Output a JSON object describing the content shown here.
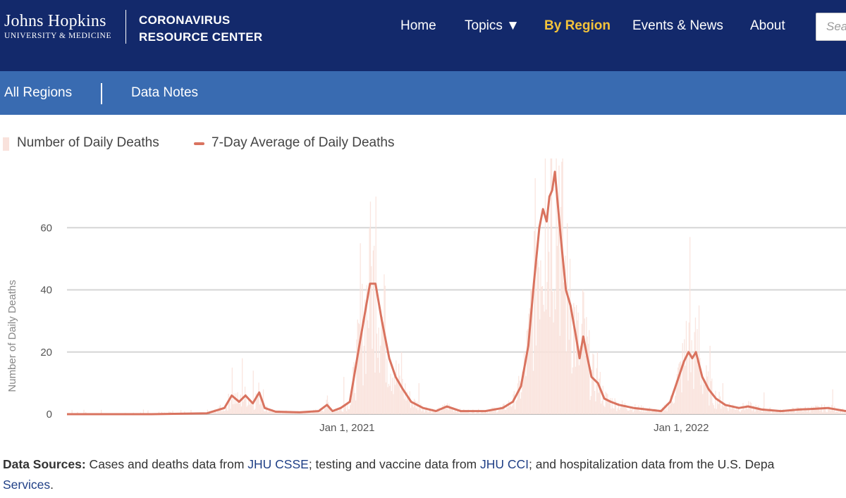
{
  "header": {
    "logo_line1": "Johns Hopkins",
    "logo_line2": "UNIVERSITY & MEDICINE",
    "center_line1": "CORONAVIRUS",
    "center_line2": "RESOURCE CENTER",
    "nav": [
      {
        "label": "Home",
        "active": false
      },
      {
        "label": "Topics ▼",
        "active": false
      },
      {
        "label": "By Region",
        "active": true
      },
      {
        "label": "Events & News",
        "active": false
      },
      {
        "label": "About",
        "active": false
      }
    ],
    "search_placeholder": "Sea"
  },
  "subnav": {
    "items": [
      "All Regions",
      "Data Notes"
    ]
  },
  "legend": {
    "bars_label": "Number of Daily Deaths",
    "line_label": "7-Day Average of Daily Deaths"
  },
  "colors": {
    "header_bg": "#13296b",
    "subnav_bg": "#396bb1",
    "active_nav": "#f3c33b",
    "bar_color": "#f9e2dc",
    "line_color": "#d9735f"
  },
  "chart_data": {
    "type": "bar",
    "ylabel": "Number of Daily Deaths",
    "ylim": [
      0,
      80
    ],
    "yticks": [
      0,
      20,
      40,
      60
    ],
    "xlim": [
      "2020-03-01",
      "2022-06-30"
    ],
    "xticks": [
      {
        "date": "2021-01-01",
        "label": "Jan 1, 2021"
      },
      {
        "date": "2022-01-01",
        "label": "Jan 1, 2022"
      }
    ],
    "grid": true,
    "legend_position": "top-left",
    "series": [
      {
        "name": "7-Day Average of Daily Deaths",
        "kind": "line",
        "points": [
          [
            "2020-03-01",
            0
          ],
          [
            "2020-06-01",
            0
          ],
          [
            "2020-08-01",
            0.3
          ],
          [
            "2020-08-20",
            2
          ],
          [
            "2020-08-28",
            6
          ],
          [
            "2020-09-05",
            4
          ],
          [
            "2020-09-12",
            6
          ],
          [
            "2020-09-20",
            3.5
          ],
          [
            "2020-09-27",
            7
          ],
          [
            "2020-10-03",
            2
          ],
          [
            "2020-10-15",
            0.8
          ],
          [
            "2020-11-10",
            0.6
          ],
          [
            "2020-12-01",
            1
          ],
          [
            "2020-12-10",
            3
          ],
          [
            "2020-12-16",
            1
          ],
          [
            "2020-12-25",
            2
          ],
          [
            "2021-01-04",
            4
          ],
          [
            "2021-01-12",
            18
          ],
          [
            "2021-01-19",
            30
          ],
          [
            "2021-01-26",
            42
          ],
          [
            "2021-02-01",
            42
          ],
          [
            "2021-02-08",
            30
          ],
          [
            "2021-02-16",
            18
          ],
          [
            "2021-02-23",
            12
          ],
          [
            "2021-03-03",
            8
          ],
          [
            "2021-03-12",
            4
          ],
          [
            "2021-03-25",
            2
          ],
          [
            "2021-04-08",
            1
          ],
          [
            "2021-04-20",
            2.5
          ],
          [
            "2021-05-05",
            1
          ],
          [
            "2021-06-01",
            1
          ],
          [
            "2021-06-20",
            2
          ],
          [
            "2021-07-01",
            4
          ],
          [
            "2021-07-10",
            9
          ],
          [
            "2021-07-18",
            22
          ],
          [
            "2021-07-24",
            42
          ],
          [
            "2021-07-30",
            60
          ],
          [
            "2021-08-03",
            66
          ],
          [
            "2021-08-07",
            62
          ],
          [
            "2021-08-10",
            70
          ],
          [
            "2021-08-13",
            72
          ],
          [
            "2021-08-16",
            78
          ],
          [
            "2021-08-19",
            68
          ],
          [
            "2021-08-23",
            55
          ],
          [
            "2021-08-28",
            40
          ],
          [
            "2021-09-02",
            35
          ],
          [
            "2021-09-08",
            25
          ],
          [
            "2021-09-12",
            18
          ],
          [
            "2021-09-16",
            25
          ],
          [
            "2021-09-20",
            19
          ],
          [
            "2021-09-25",
            12
          ],
          [
            "2021-10-02",
            10
          ],
          [
            "2021-10-09",
            5
          ],
          [
            "2021-10-16",
            4
          ],
          [
            "2021-10-25",
            3
          ],
          [
            "2021-11-10",
            2
          ],
          [
            "2021-11-25",
            1.5
          ],
          [
            "2021-12-10",
            1
          ],
          [
            "2021-12-20",
            4
          ],
          [
            "2021-12-27",
            10
          ],
          [
            "2022-01-04",
            17
          ],
          [
            "2022-01-09",
            20
          ],
          [
            "2022-01-13",
            18
          ],
          [
            "2022-01-17",
            20
          ],
          [
            "2022-01-24",
            12
          ],
          [
            "2022-01-31",
            8
          ],
          [
            "2022-02-08",
            5
          ],
          [
            "2022-02-18",
            3
          ],
          [
            "2022-03-05",
            2
          ],
          [
            "2022-03-15",
            2.5
          ],
          [
            "2022-03-30",
            1.5
          ],
          [
            "2022-04-20",
            1
          ],
          [
            "2022-05-10",
            1.5
          ],
          [
            "2022-05-25",
            1.7
          ],
          [
            "2022-06-10",
            2
          ],
          [
            "2022-06-30",
            1
          ]
        ]
      }
    ],
    "bar_peaks": [
      [
        "2020-08-15",
        3
      ],
      [
        "2020-08-28",
        15
      ],
      [
        "2020-09-08",
        18
      ],
      [
        "2020-09-20",
        14
      ],
      [
        "2020-10-01",
        8
      ],
      [
        "2020-12-10",
        6
      ],
      [
        "2020-12-28",
        12
      ],
      [
        "2021-01-15",
        55
      ],
      [
        "2021-01-25",
        60
      ],
      [
        "2021-02-01",
        70
      ],
      [
        "2021-02-10",
        45
      ],
      [
        "2021-03-01",
        20
      ],
      [
        "2021-03-20",
        10
      ],
      [
        "2021-07-20",
        40
      ],
      [
        "2021-08-05",
        85
      ],
      [
        "2021-08-12",
        85
      ],
      [
        "2021-08-20",
        80
      ],
      [
        "2021-09-01",
        50
      ],
      [
        "2021-09-15",
        40
      ],
      [
        "2021-10-01",
        20
      ],
      [
        "2021-12-28",
        15
      ],
      [
        "2022-01-06",
        30
      ],
      [
        "2022-01-10",
        57
      ],
      [
        "2022-01-20",
        35
      ],
      [
        "2022-02-01",
        22
      ],
      [
        "2022-02-15",
        10
      ],
      [
        "2022-04-01",
        7
      ],
      [
        "2022-06-15",
        8
      ]
    ]
  },
  "footer": {
    "label": "Data Sources:",
    "t1": " Cases and deaths data from ",
    "link1": "JHU CSSE",
    "t2": "; testing and vaccine data from ",
    "link2": "JHU CCI",
    "t3": "; and hospitalization data from the U.S. Depa",
    "link3": "Services",
    "t4": "."
  }
}
